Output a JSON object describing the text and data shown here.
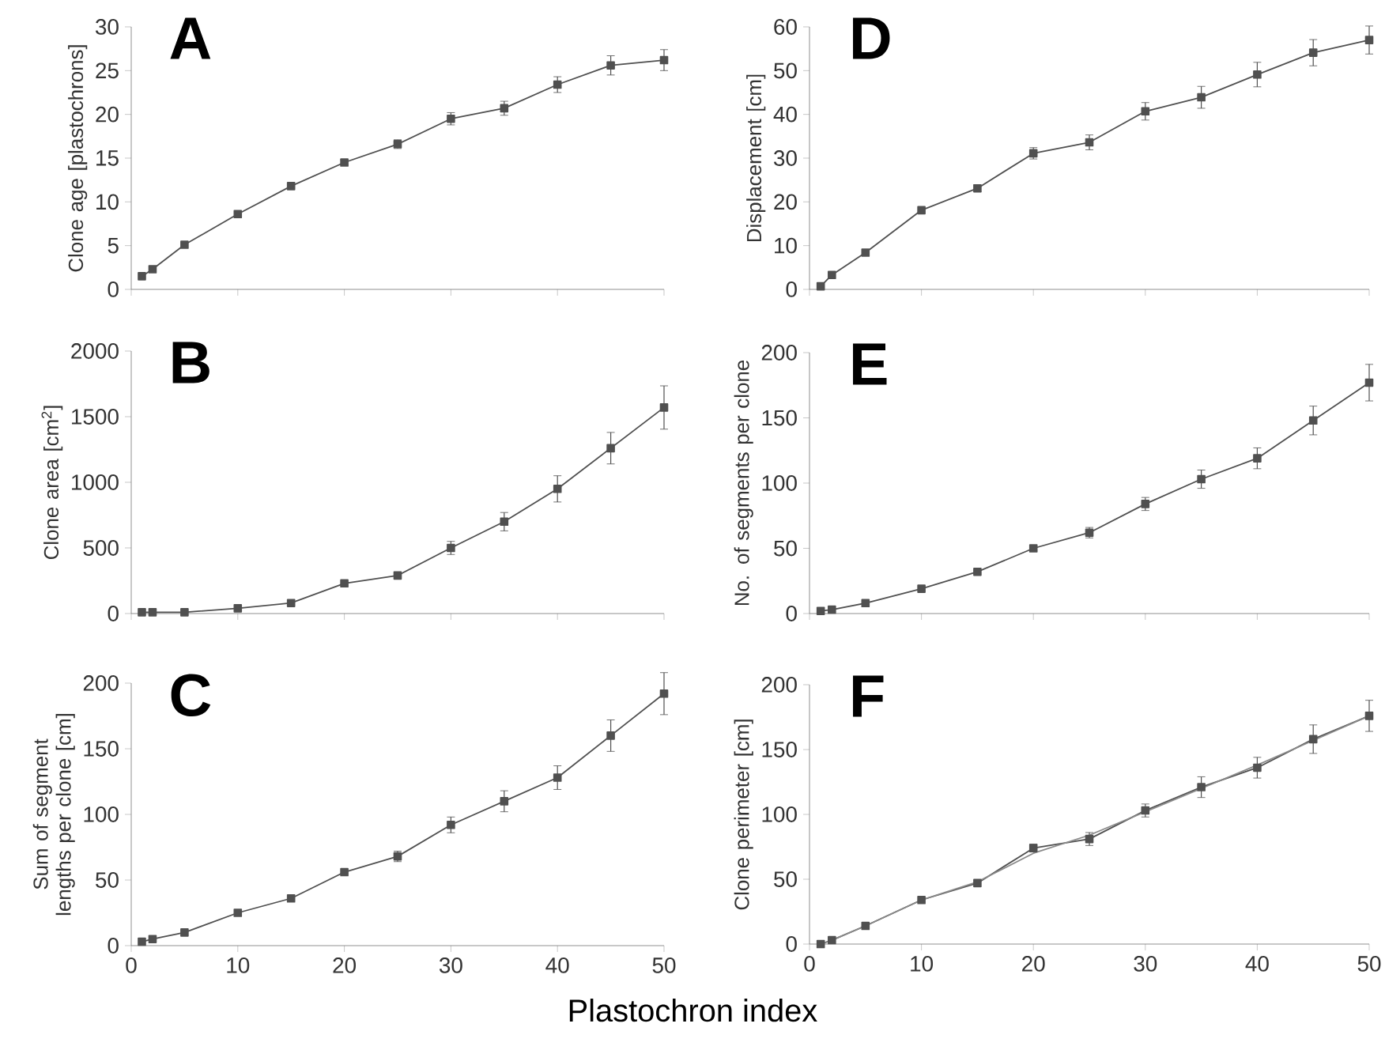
{
  "chart_data": [
    {
      "type": "line",
      "title": "A",
      "ylabel": "Clone age [plastochrons]",
      "x": [
        1,
        2,
        5,
        10,
        15,
        20,
        25,
        30,
        35,
        40,
        45,
        50
      ],
      "marker": "square",
      "xlim": [
        0,
        50
      ],
      "ylim": [
        0,
        30
      ],
      "xticks": [
        0,
        10,
        20,
        30,
        40,
        50
      ],
      "yticks": [
        0,
        5,
        10,
        15,
        20,
        25,
        30
      ],
      "tick_labels": "y",
      "series": [
        {
          "color": "#505050",
          "values": [
            1.5,
            2.3,
            5.1,
            8.6,
            11.8,
            14.5,
            16.6,
            19.5,
            20.7,
            23.4,
            25.6,
            26.2
          ],
          "errors": [
            null,
            null,
            null,
            null,
            null,
            0.3,
            0.5,
            0.7,
            0.8,
            0.9,
            1.1,
            1.2
          ]
        }
      ]
    },
    {
      "type": "line",
      "title": "D",
      "ylabel": "Displacement [cm]",
      "x": [
        1,
        2,
        5,
        10,
        15,
        20,
        25,
        30,
        35,
        40,
        45,
        50
      ],
      "marker": "square",
      "xlim": [
        0,
        50
      ],
      "ylim": [
        0,
        60
      ],
      "xticks": [
        0,
        10,
        20,
        30,
        40,
        50
      ],
      "yticks": [
        0,
        10,
        20,
        30,
        40,
        50,
        60
      ],
      "tick_labels": "y",
      "series": [
        {
          "color": "#505050",
          "values": [
            0.7,
            3.3,
            8.4,
            18.1,
            23.1,
            31.1,
            33.6,
            40.7,
            43.9,
            49.1,
            54.1,
            57.0
          ],
          "errors": [
            null,
            null,
            null,
            null,
            0.8,
            1.3,
            1.7,
            2,
            2.5,
            2.8,
            3,
            3.2
          ]
        }
      ]
    },
    {
      "type": "line",
      "title": "B",
      "ylabel": "Clone area [cm$^{2}$]",
      "x": [
        1,
        2,
        5,
        10,
        15,
        20,
        25,
        30,
        35,
        40,
        45,
        50
      ],
      "marker": "square",
      "xlim": [
        0,
        50
      ],
      "ylim": [
        0,
        2000
      ],
      "xticks": [
        0,
        10,
        20,
        30,
        40,
        50
      ],
      "yticks": [
        0,
        500,
        1000,
        1500,
        2000
      ],
      "tick_labels": "y",
      "series": [
        {
          "color": "#505050",
          "values": [
            10,
            10,
            10,
            40,
            80,
            230,
            290,
            500,
            700,
            950,
            1260,
            1570
          ],
          "errors": [
            null,
            null,
            null,
            null,
            null,
            null,
            null,
            50,
            70,
            100,
            120,
            165
          ]
        }
      ]
    },
    {
      "type": "line",
      "title": "E",
      "ylabel": "No. of segments per clone",
      "x": [
        1,
        2,
        5,
        10,
        15,
        20,
        25,
        30,
        35,
        40,
        45,
        50
      ],
      "marker": "square",
      "xlim": [
        0,
        50
      ],
      "ylim": [
        0,
        200
      ],
      "xticks": [
        0,
        10,
        20,
        30,
        40,
        50
      ],
      "yticks": [
        0,
        50,
        100,
        150,
        200
      ],
      "tick_labels": "y",
      "series": [
        {
          "color": "#505050",
          "values": [
            2,
            3,
            8,
            19,
            32,
            50,
            62,
            84,
            103,
            119,
            148,
            177
          ],
          "errors": [
            null,
            null,
            null,
            null,
            null,
            2,
            4,
            5,
            7,
            8,
            11,
            14
          ]
        }
      ]
    },
    {
      "type": "line",
      "title": "C",
      "ylabel": "Sum of segment lengths per clone [cm]",
      "xlabel": "Plastochron index",
      "x": [
        1,
        2,
        5,
        10,
        15,
        20,
        25,
        30,
        35,
        40,
        45,
        50
      ],
      "marker": "square",
      "xlim": [
        0,
        50
      ],
      "ylim": [
        0,
        200
      ],
      "xticks": [
        0,
        10,
        20,
        30,
        40,
        50
      ],
      "yticks": [
        0,
        50,
        100,
        150,
        200
      ],
      "series": [
        {
          "color": "#505050",
          "values": [
            3,
            5,
            10,
            25,
            36,
            56,
            68,
            92,
            110,
            128,
            160,
            192
          ],
          "errors": [
            null,
            null,
            null,
            null,
            null,
            null,
            4,
            6,
            8,
            9,
            12,
            16
          ]
        }
      ]
    },
    {
      "type": "line",
      "title": "F",
      "ylabel": "Clone perimeter [cm]",
      "x": [
        1,
        2,
        5,
        10,
        15,
        20,
        25,
        30,
        35,
        40,
        45,
        50
      ],
      "marker": "square",
      "xlim": [
        0,
        50
      ],
      "ylim": [
        0,
        200
      ],
      "xticks": [
        0,
        10,
        20,
        30,
        40,
        50
      ],
      "yticks": [
        0,
        50,
        100,
        150,
        200
      ],
      "series": [
        {
          "color": "#505050",
          "values": [
            0,
            3,
            14,
            34,
            47,
            74,
            81,
            103,
            121,
            136,
            158,
            176
          ],
          "errors": [
            null,
            null,
            null,
            null,
            null,
            3,
            5,
            5,
            8,
            8,
            11,
            12
          ]
        },
        {
          "color": "#8a8a8a",
          "marker": "none",
          "values": [
            0,
            3,
            14,
            34,
            48,
            70,
            84,
            102,
            120,
            138,
            157,
            176
          ]
        }
      ]
    }
  ]
}
